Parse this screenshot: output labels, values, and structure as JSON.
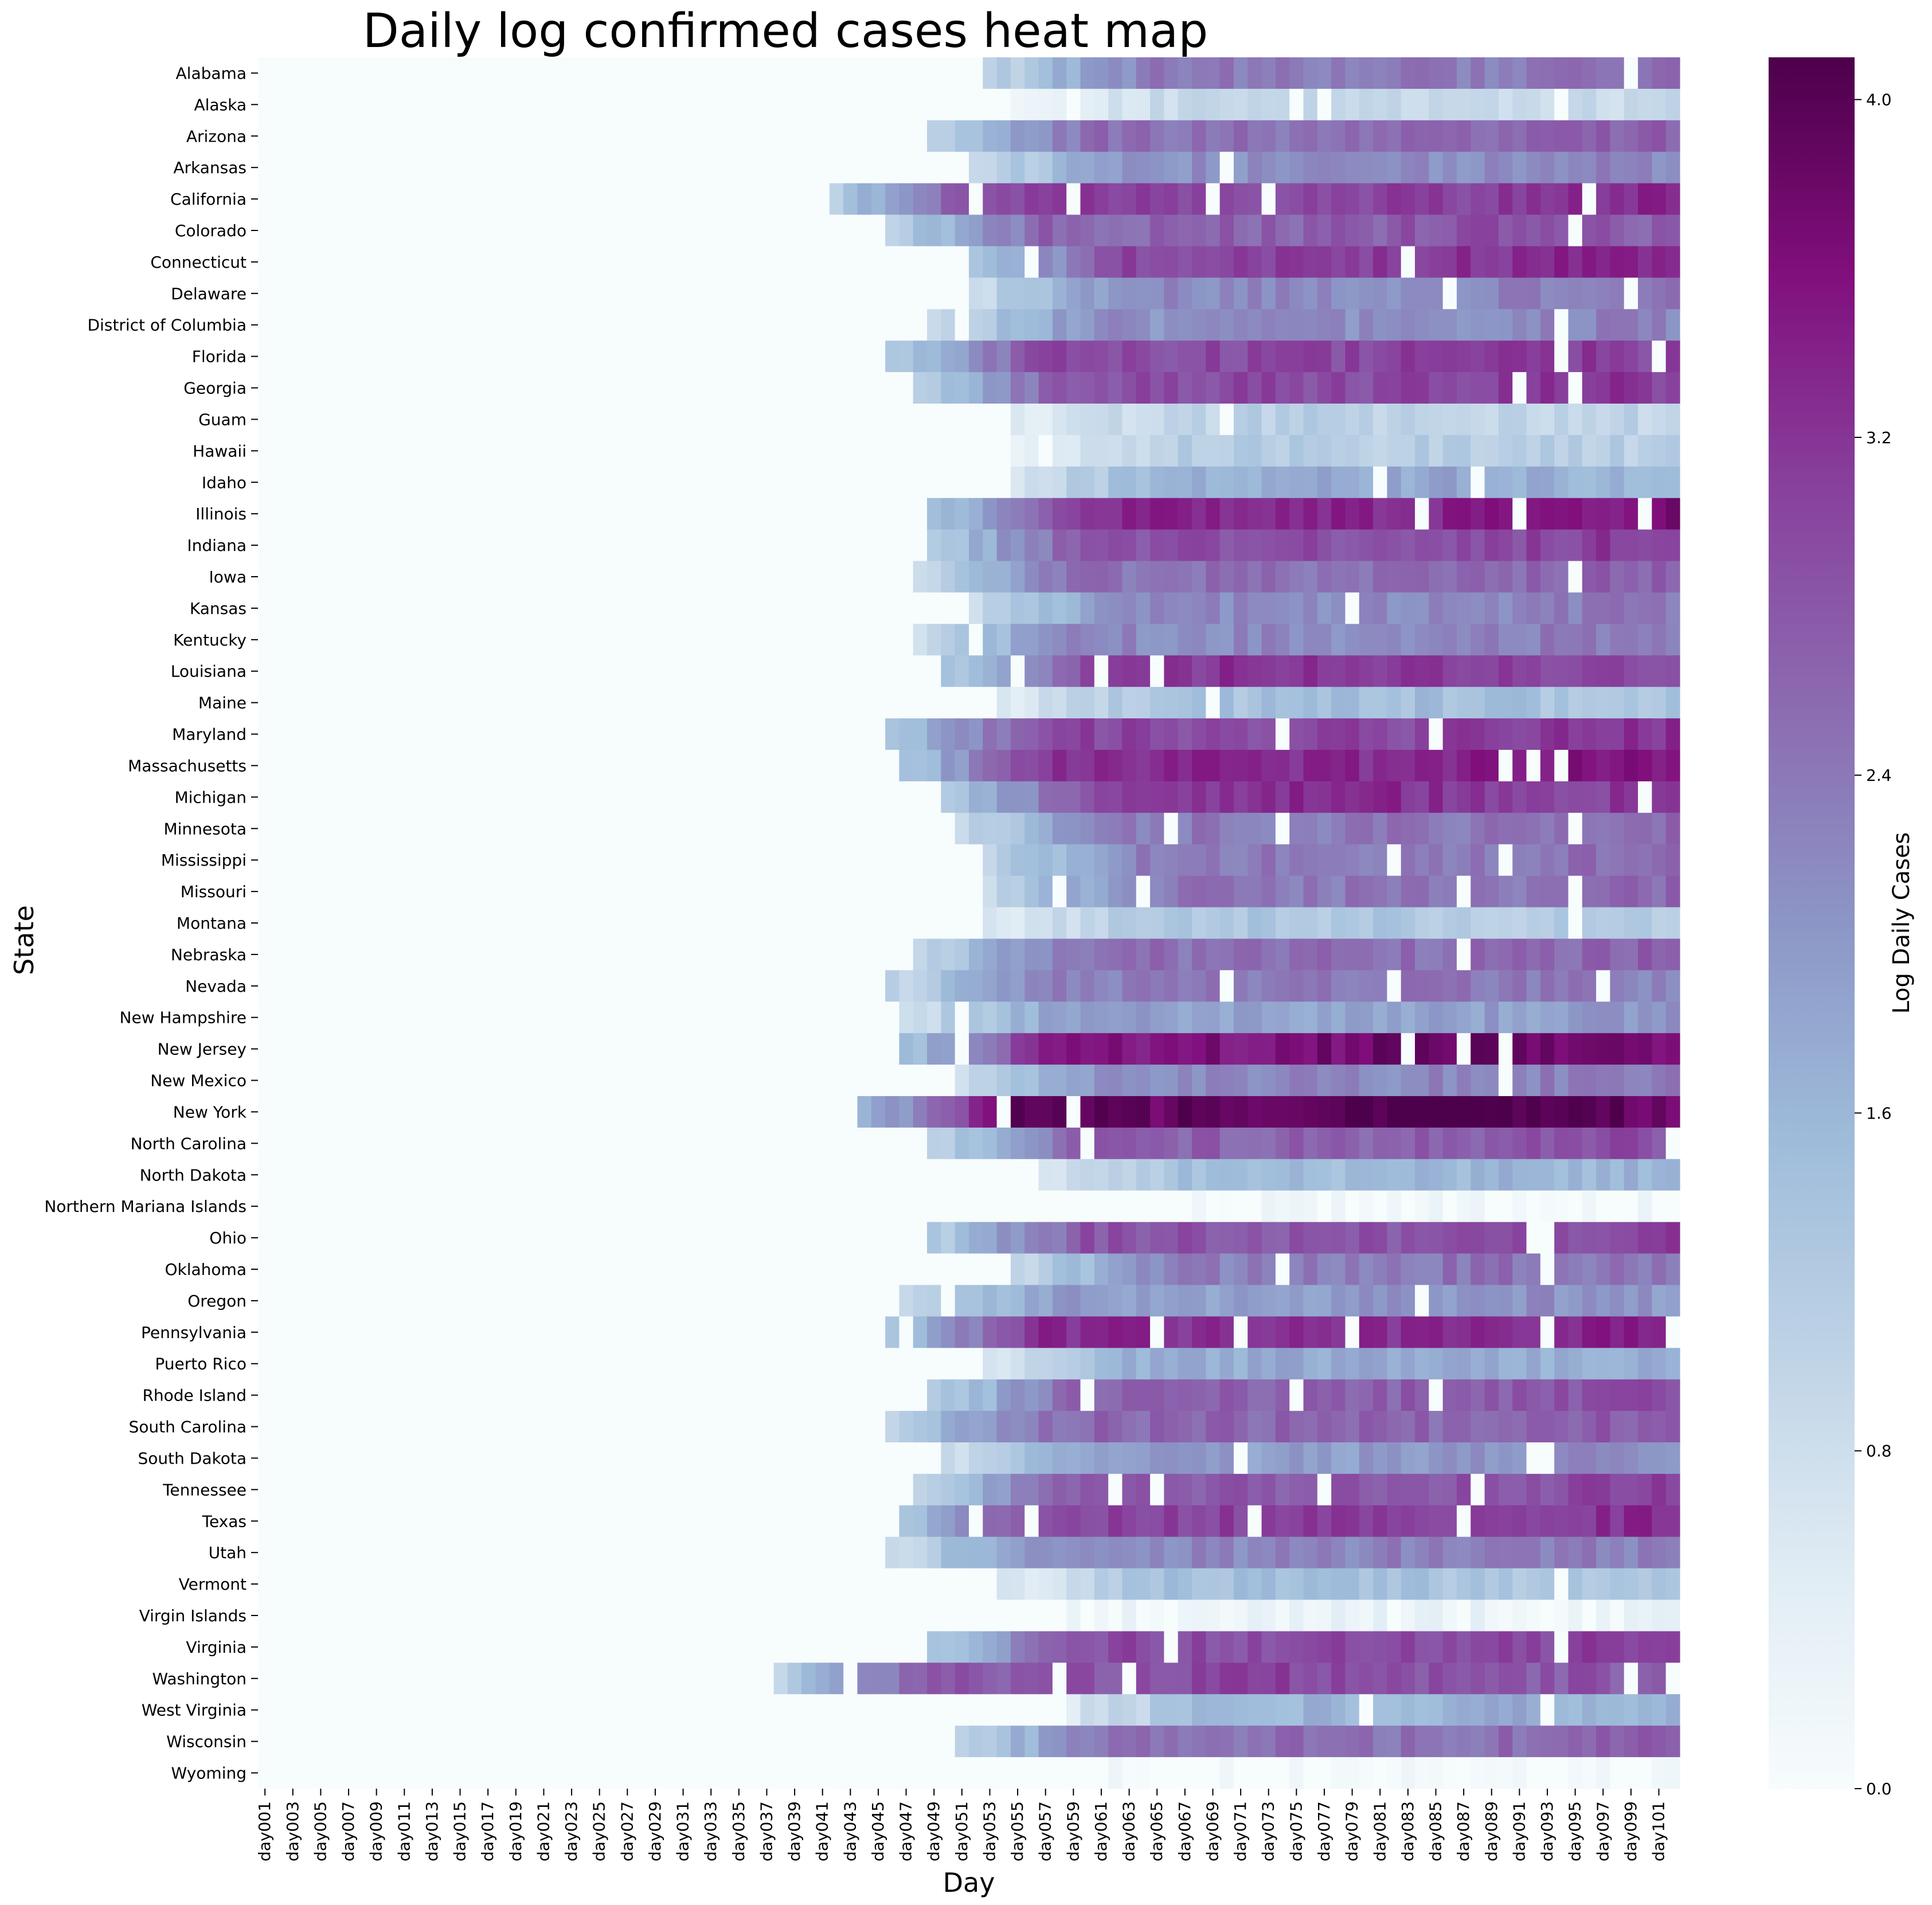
{
  "chart_data": {
    "type": "heatmap",
    "title": "Daily log confirmed cases heat map",
    "xlabel": "Day",
    "ylabel": "State",
    "colorbar_label": "Log Daily Cases",
    "colorscale": "BuPu",
    "color_range": [
      0.0,
      4.1
    ],
    "colorbar_ticks": [
      "0.0",
      "0.8",
      "1.6",
      "2.4",
      "3.2",
      "4.0"
    ],
    "colorbar_tick_values": [
      0.0,
      0.8,
      1.6,
      2.4,
      3.2,
      4.0
    ],
    "n_days": 102,
    "x_tick_labels": [
      "day001",
      "day003",
      "day005",
      "day007",
      "day009",
      "day011",
      "day013",
      "day015",
      "day017",
      "day019",
      "day021",
      "day023",
      "day025",
      "day027",
      "day029",
      "day031",
      "day033",
      "day035",
      "day037",
      "day039",
      "day041",
      "day043",
      "day045",
      "day047",
      "day049",
      "day051",
      "day053",
      "day055",
      "day057",
      "day059",
      "day061",
      "day063",
      "day065",
      "day067",
      "day069",
      "day071",
      "day073",
      "day075",
      "day077",
      "day079",
      "day081",
      "day083",
      "day085",
      "day087",
      "day089",
      "day091",
      "day093",
      "day095",
      "day097",
      "day099",
      "day101"
    ],
    "rows": [
      {
        "state": "Alabama",
        "onset": 53,
        "plateau": 2.35,
        "peak_day": 102
      },
      {
        "state": "Alaska",
        "onset": 55,
        "plateau": 0.9,
        "peak_day": 80
      },
      {
        "state": "Arizona",
        "onset": 49,
        "plateau": 2.5,
        "peak_day": 102
      },
      {
        "state": "Arkansas",
        "onset": 52,
        "plateau": 2.1,
        "peak_day": 95
      },
      {
        "state": "California",
        "onset": 42,
        "plateau": 3.05,
        "peak_day": 100
      },
      {
        "state": "Colorado",
        "onset": 46,
        "plateau": 2.65,
        "peak_day": 90
      },
      {
        "state": "Connecticut",
        "onset": 52,
        "plateau": 3.05,
        "peak_day": 94
      },
      {
        "state": "Delaware",
        "onset": 52,
        "plateau": 2.2,
        "peak_day": 100
      },
      {
        "state": "District of Columbia",
        "onset": 49,
        "plateau": 2.1,
        "peak_day": 100
      },
      {
        "state": "Florida",
        "onset": 46,
        "plateau": 2.95,
        "peak_day": 90
      },
      {
        "state": "Georgia",
        "onset": 48,
        "plateau": 2.95,
        "peak_day": 95
      },
      {
        "state": "Guam",
        "onset": 55,
        "plateau": 1.0,
        "peak_day": 78
      },
      {
        "state": "Hawaii",
        "onset": 55,
        "plateau": 1.1,
        "peak_day": 75
      },
      {
        "state": "Idaho",
        "onset": 55,
        "plateau": 1.7,
        "peak_day": 80
      },
      {
        "state": "Illinois",
        "onset": 49,
        "plateau": 3.35,
        "peak_day": 102
      },
      {
        "state": "Indiana",
        "onset": 49,
        "plateau": 2.9,
        "peak_day": 100
      },
      {
        "state": "Iowa",
        "onset": 48,
        "plateau": 2.5,
        "peak_day": 102
      },
      {
        "state": "Kansas",
        "onset": 52,
        "plateau": 2.2,
        "peak_day": 102
      },
      {
        "state": "Kentucky",
        "onset": 48,
        "plateau": 2.2,
        "peak_day": 95
      },
      {
        "state": "Louisiana",
        "onset": 50,
        "plateau": 3.0,
        "peak_day": 74
      },
      {
        "state": "Maine",
        "onset": 54,
        "plateau": 1.35,
        "peak_day": 80
      },
      {
        "state": "Maryland",
        "onset": 46,
        "plateau": 3.0,
        "peak_day": 102
      },
      {
        "state": "Massachusetts",
        "onset": 47,
        "plateau": 3.3,
        "peak_day": 96
      },
      {
        "state": "Michigan",
        "onset": 50,
        "plateau": 3.1,
        "peak_day": 76
      },
      {
        "state": "Minnesota",
        "onset": 51,
        "plateau": 2.4,
        "peak_day": 102
      },
      {
        "state": "Mississippi",
        "onset": 53,
        "plateau": 2.4,
        "peak_day": 102
      },
      {
        "state": "Missouri",
        "onset": 53,
        "plateau": 2.4,
        "peak_day": 102
      },
      {
        "state": "Montana",
        "onset": 53,
        "plateau": 1.2,
        "peak_day": 75
      },
      {
        "state": "Nebraska",
        "onset": 48,
        "plateau": 2.5,
        "peak_day": 102
      },
      {
        "state": "Nevada",
        "onset": 46,
        "plateau": 2.3,
        "peak_day": 80
      },
      {
        "state": "New Hampshire",
        "onset": 47,
        "plateau": 1.9,
        "peak_day": 102
      },
      {
        "state": "New Jersey",
        "onset": 47,
        "plateau": 3.55,
        "peak_day": 86
      },
      {
        "state": "New Mexico",
        "onset": 51,
        "plateau": 2.2,
        "peak_day": 100
      },
      {
        "state": "New York",
        "onset": 44,
        "plateau": 3.85,
        "peak_day": 83
      },
      {
        "state": "North Carolina",
        "onset": 49,
        "plateau": 2.7,
        "peak_day": 100
      },
      {
        "state": "North Dakota",
        "onset": 57,
        "plateau": 1.5,
        "peak_day": 96
      },
      {
        "state": "Northern Mariana Islands",
        "onset": 68,
        "plateau": 0.08,
        "peak_day": 73
      },
      {
        "state": "Ohio",
        "onset": 49,
        "plateau": 2.85,
        "peak_day": 102
      },
      {
        "state": "Oklahoma",
        "onset": 55,
        "plateau": 2.3,
        "peak_day": 90
      },
      {
        "state": "Oregon",
        "onset": 47,
        "plateau": 1.95,
        "peak_day": 90
      },
      {
        "state": "Pennsylvania",
        "onset": 46,
        "plateau": 3.25,
        "peak_day": 102
      },
      {
        "state": "Puerto Rico",
        "onset": 53,
        "plateau": 1.7,
        "peak_day": 80
      },
      {
        "state": "Rhode Island",
        "onset": 49,
        "plateau": 2.7,
        "peak_day": 100
      },
      {
        "state": "South Carolina",
        "onset": 46,
        "plateau": 2.6,
        "peak_day": 102
      },
      {
        "state": "South Dakota",
        "onset": 50,
        "plateau": 1.95,
        "peak_day": 95
      },
      {
        "state": "Tennessee",
        "onset": 48,
        "plateau": 2.8,
        "peak_day": 102
      },
      {
        "state": "Texas",
        "onset": 46,
        "plateau": 3.05,
        "peak_day": 102
      },
      {
        "state": "Utah",
        "onset": 46,
        "plateau": 2.2,
        "peak_day": 90
      },
      {
        "state": "Vermont",
        "onset": 54,
        "plateau": 1.35,
        "peak_day": 75
      },
      {
        "state": "Virgin Islands",
        "onset": 59,
        "plateau": 0.25,
        "peak_day": 70
      },
      {
        "state": "Virginia",
        "onset": 49,
        "plateau": 2.95,
        "peak_day": 102
      },
      {
        "state": "Washington",
        "onset": 38,
        "plateau": 2.8,
        "peak_day": 73
      },
      {
        "state": "West Virginia",
        "onset": 59,
        "plateau": 1.6,
        "peak_day": 90
      },
      {
        "state": "Wisconsin",
        "onset": 51,
        "plateau": 2.5,
        "peak_day": 102
      },
      {
        "state": "Wyoming",
        "onset": 60,
        "plateau": 0.05,
        "peak_day": 80
      }
    ]
  }
}
